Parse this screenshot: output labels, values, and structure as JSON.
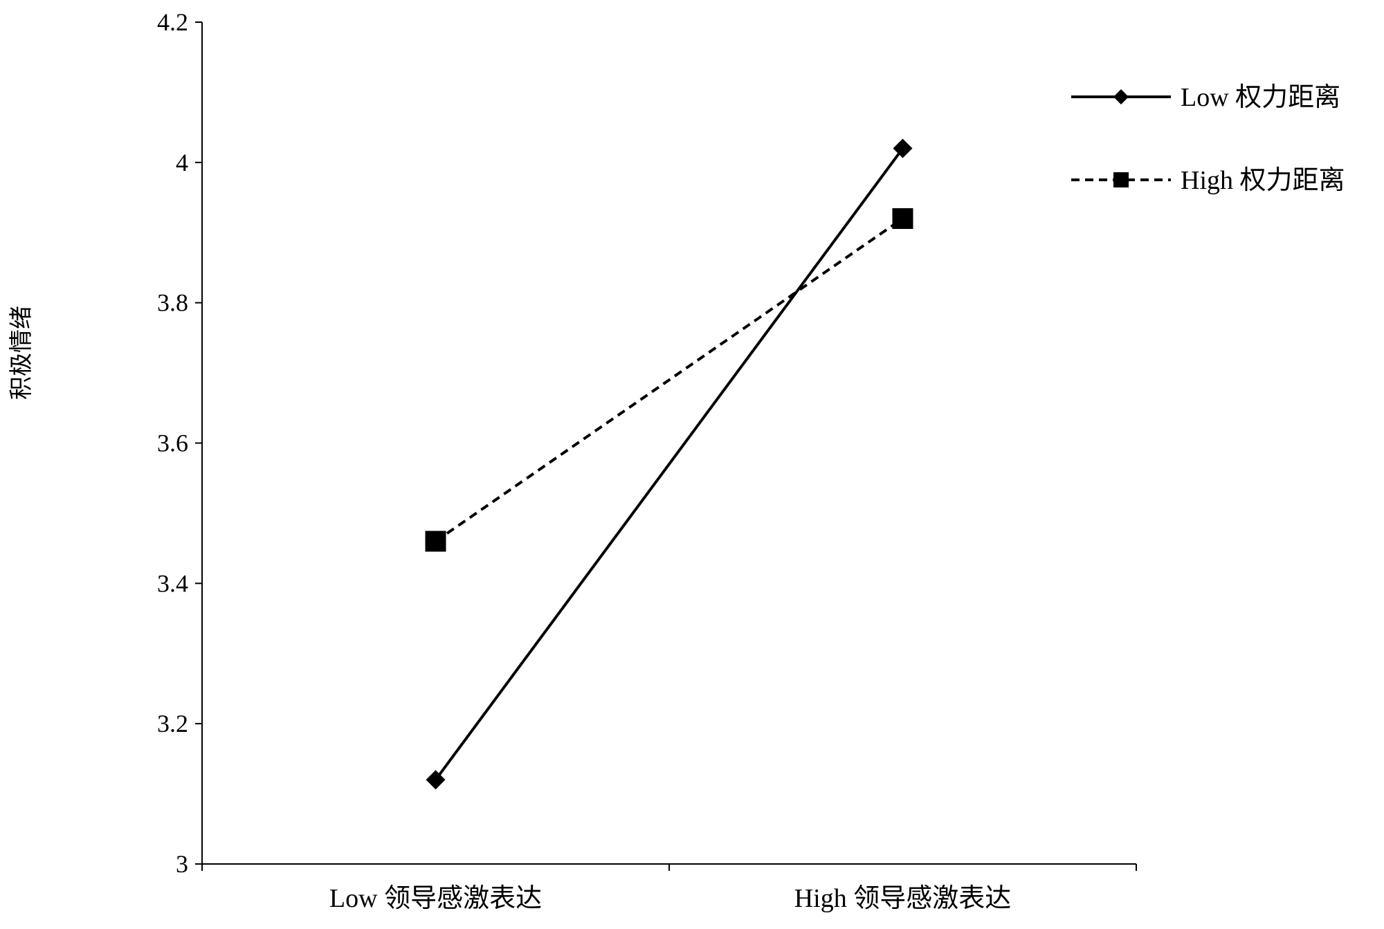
{
  "chart_data": {
    "type": "line",
    "title": "",
    "xlabel": "",
    "ylabel": "积极情绪",
    "categories": [
      "Low 领导感激表达",
      "High 领导感激表达"
    ],
    "ylim": [
      3,
      4.2
    ],
    "yticks": [
      "3",
      "3.2",
      "3.4",
      "3.6",
      "3.8",
      "4",
      "4.2"
    ],
    "grid": false,
    "legend_position": "top-right",
    "series": [
      {
        "name": "Low 权力距离",
        "values": [
          3.12,
          4.02
        ],
        "line_style": "solid",
        "marker": "diamond",
        "color": "#000000"
      },
      {
        "name": "High 权力距离",
        "values": [
          3.46,
          3.92
        ],
        "line_style": "dashed",
        "marker": "square",
        "color": "#000000"
      }
    ]
  }
}
